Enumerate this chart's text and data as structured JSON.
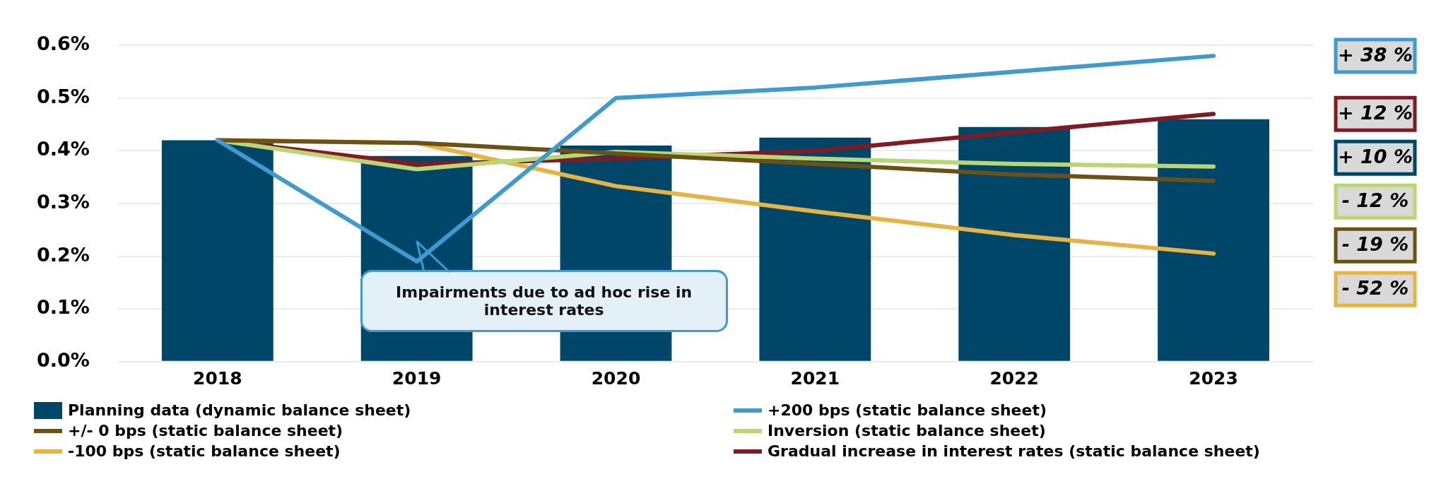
{
  "chart_data": {
    "type": "bar",
    "categories": [
      "2018",
      "2019",
      "2020",
      "2021",
      "2022",
      "2023"
    ],
    "series": [
      {
        "name": "Planning data (dynamic balance sheet)",
        "color": "#004669",
        "values": [
          0.42,
          0.39,
          0.41,
          0.425,
          0.445,
          0.46
        ]
      },
      {
        "name": "+200 bps (static balance sheet)",
        "type": "line",
        "color": "#3d9bd1",
        "values": [
          0.42,
          0.19,
          0.5,
          0.52,
          0.55,
          0.58
        ]
      },
      {
        "name": "+/- 0 bps (static balance sheet)",
        "type": "line",
        "color": "#6b5114",
        "values": [
          0.42,
          0.415,
          0.395,
          0.375,
          0.355,
          0.343
        ]
      },
      {
        "name": "Inversion (static balance sheet)",
        "type": "line",
        "color": "#bad672",
        "values": [
          0.42,
          0.365,
          0.398,
          0.385,
          0.375,
          0.37
        ]
      },
      {
        "name": "-100 bps (static balance sheet)",
        "type": "line",
        "color": "#e6b441",
        "values": [
          0.42,
          0.415,
          0.333,
          0.285,
          0.24,
          0.205
        ]
      },
      {
        "name": "Gradual increase in interest rates (static balance sheet)",
        "type": "line",
        "color": "#801b22",
        "values": [
          0.42,
          0.375,
          0.385,
          0.4,
          0.435,
          0.47
        ]
      }
    ],
    "ylim": [
      0,
      0.6
    ],
    "yticks": [
      {
        "value": 0,
        "label": "0.0%"
      },
      {
        "value": 0.1,
        "label": "0.1%"
      },
      {
        "value": 0.2,
        "label": "0.2%"
      },
      {
        "value": 0.3,
        "label": "0.3%"
      },
      {
        "value": 0.4,
        "label": "0.4%"
      },
      {
        "value": 0.5,
        "label": "0.5%"
      },
      {
        "value": 0.6,
        "label": "0.6%"
      }
    ],
    "grid": "y",
    "legend": "bottom",
    "marker": "none",
    "line_style": "solid",
    "annotations": [
      "Impairments due to ad hoc rise in interest rates",
      "+ 38 %",
      "+ 12 %",
      "+ 10 %",
      "- 12 %",
      "- 19 %",
      "- 52 %"
    ]
  }
}
